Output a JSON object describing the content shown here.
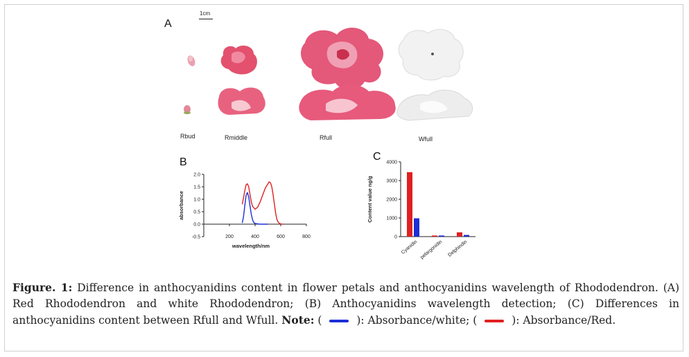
{
  "panel_a": {
    "letter": "A",
    "scale_bar_label": "1cm",
    "labels": [
      "Rbud",
      "Rmiddle",
      "Rfull",
      "Wfull"
    ]
  },
  "panel_b": {
    "letter": "B"
  },
  "panel_c": {
    "letter": "C"
  },
  "chart_data": [
    {
      "type": "line",
      "xlabel": "wavelength/nm",
      "ylabel": "absorbance",
      "xlim": [
        0,
        800
      ],
      "ylim": [
        -0.5,
        2.0
      ],
      "xticks": [
        200,
        400,
        600,
        800
      ],
      "yticks": [
        -0.5,
        0.0,
        0.5,
        1.0,
        1.5,
        2.0
      ],
      "colors": {
        "red": "#e02020",
        "blue": "#1d2fd6"
      },
      "series": [
        {
          "color": "#e02020",
          "x": [
            300,
            310,
            320,
            330,
            340,
            350,
            360,
            370,
            380,
            400,
            420,
            440,
            460,
            480,
            500,
            510,
            520,
            530,
            540,
            550,
            560,
            570,
            580,
            590,
            600,
            610,
            620
          ],
          "y": [
            0.8,
            1.05,
            1.35,
            1.58,
            1.62,
            1.5,
            1.2,
            0.9,
            0.72,
            0.6,
            0.68,
            0.9,
            1.18,
            1.45,
            1.62,
            1.7,
            1.66,
            1.5,
            1.2,
            0.82,
            0.45,
            0.2,
            0.08,
            0.03,
            0.01,
            0.0,
            0.0
          ]
        },
        {
          "color": "#1d2fd6",
          "x": [
            300,
            310,
            320,
            330,
            340,
            350,
            360,
            370,
            380,
            390,
            400,
            420,
            440,
            500
          ],
          "y": [
            0.05,
            0.3,
            0.75,
            1.15,
            1.27,
            1.1,
            0.75,
            0.4,
            0.18,
            0.07,
            0.03,
            0.01,
            0.0,
            0.0
          ]
        }
      ]
    },
    {
      "type": "bar",
      "ylabel": "Content value ng/g",
      "ylim": [
        0,
        4000
      ],
      "yticks": [
        0,
        1000,
        2000,
        3000,
        4000
      ],
      "categories": [
        "Cyanidin",
        "pelargonidin",
        "Delphindin"
      ],
      "colors": {
        "red": "#e02020",
        "blue": "#1d2fd6"
      },
      "series": [
        {
          "color": "#e02020",
          "values": [
            3450,
            60,
            230
          ]
        },
        {
          "color": "#1d2fd6",
          "values": [
            980,
            60,
            90
          ]
        }
      ]
    }
  ],
  "caption": {
    "label": "Figure. 1:",
    "text": " Difference in anthocyanidins content in flower petals and anthocyanidins wavelength of Rhododendron. (A) Red Rhododendron and white Rhododendron; (B) Anthocyanidins wavelength detection; (C) Differences in anthocyanidins content between Rfull and Wfull. ",
    "note_label": "Note:",
    "open1": " ( ",
    "legend1_text": " ): Absorbance/white; ( ",
    "legend2_text": " ): Absorbance/Red.",
    "blue": "#1d2fd6",
    "red": "#e02020"
  }
}
